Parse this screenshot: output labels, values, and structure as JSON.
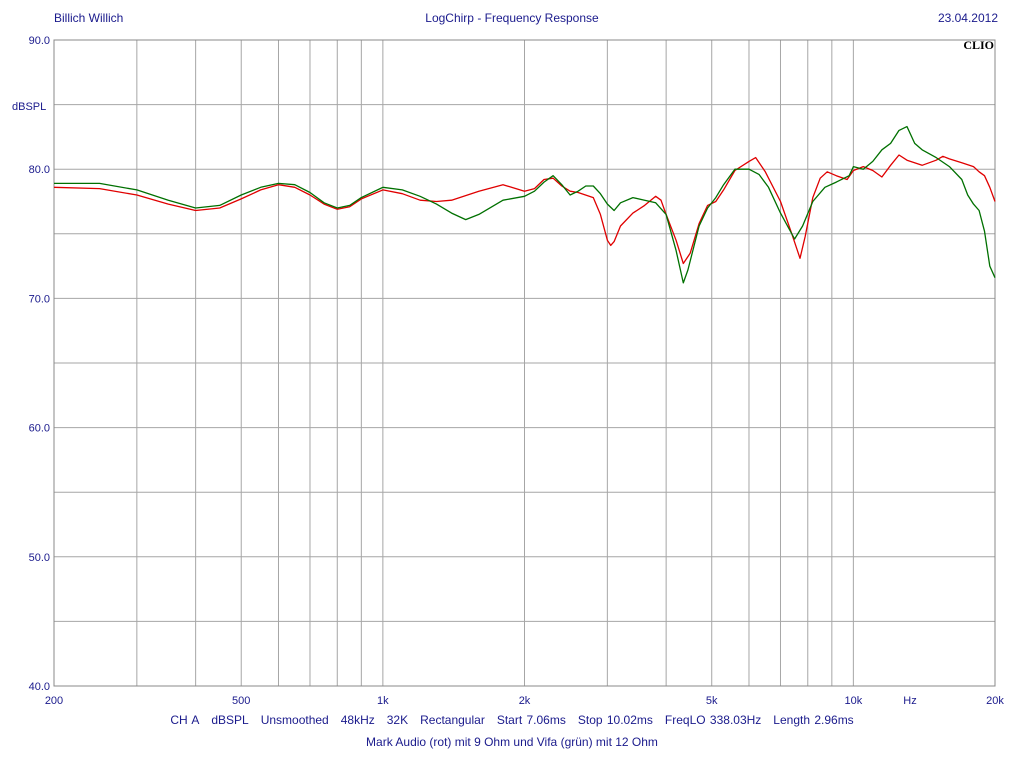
{
  "header": {
    "author": "Billich Willich",
    "title": "LogChirp - Frequency Response",
    "date": "23.04.2012",
    "brand": "CLIO"
  },
  "measurement": {
    "items": [
      "CH A",
      "dBSPL",
      "Unsmoothed",
      "48kHz",
      "32K",
      "Rectangular",
      "Start 7.06ms",
      "Stop 10.02ms",
      "FreqLO 338.03Hz",
      "Length 2.96ms"
    ],
    "caption": "Mark Audio (rot) mit 9 Ohm und Vifa (grün) mit 12 Ohm"
  },
  "chart_data": {
    "type": "line",
    "xscale": "log",
    "xlim": [
      200,
      20000
    ],
    "ylim": [
      40,
      90
    ],
    "ylabel": "dBSPL",
    "xunit": "Hz",
    "grid": true,
    "x_ticks": [
      {
        "value": 200,
        "label": "200"
      },
      {
        "value": 500,
        "label": "500"
      },
      {
        "value": 1000,
        "label": "1k"
      },
      {
        "value": 2000,
        "label": "2k"
      },
      {
        "value": 5000,
        "label": "5k"
      },
      {
        "value": 10000,
        "label": "10k"
      },
      {
        "value": 20000,
        "label": "20k"
      }
    ],
    "y_ticks": [
      {
        "value": 90,
        "label": "90.0"
      },
      {
        "value": 80,
        "label": "80.0"
      },
      {
        "value": 70,
        "label": "70.0"
      },
      {
        "value": 60,
        "label": "60.0"
      },
      {
        "value": 50,
        "label": "50.0"
      },
      {
        "value": 40,
        "label": "40.0"
      }
    ],
    "series": [
      {
        "color": "#e00000",
        "points": [
          [
            200,
            78.6
          ],
          [
            250,
            78.5
          ],
          [
            300,
            78.0
          ],
          [
            350,
            77.3
          ],
          [
            400,
            76.8
          ],
          [
            450,
            77.0
          ],
          [
            500,
            77.7
          ],
          [
            550,
            78.4
          ],
          [
            600,
            78.8
          ],
          [
            650,
            78.6
          ],
          [
            700,
            78.0
          ],
          [
            750,
            77.3
          ],
          [
            800,
            76.9
          ],
          [
            850,
            77.1
          ],
          [
            900,
            77.7
          ],
          [
            1000,
            78.4
          ],
          [
            1100,
            78.1
          ],
          [
            1200,
            77.6
          ],
          [
            1300,
            77.5
          ],
          [
            1400,
            77.6
          ],
          [
            1600,
            78.3
          ],
          [
            1800,
            78.8
          ],
          [
            2000,
            78.3
          ],
          [
            2100,
            78.5
          ],
          [
            2200,
            79.2
          ],
          [
            2300,
            79.3
          ],
          [
            2400,
            78.7
          ],
          [
            2500,
            78.3
          ],
          [
            2600,
            78.2
          ],
          [
            2800,
            77.8
          ],
          [
            2900,
            76.5
          ],
          [
            3000,
            74.5
          ],
          [
            3050,
            74.1
          ],
          [
            3100,
            74.4
          ],
          [
            3200,
            75.6
          ],
          [
            3400,
            76.6
          ],
          [
            3600,
            77.2
          ],
          [
            3800,
            77.9
          ],
          [
            3900,
            77.6
          ],
          [
            4000,
            76.5
          ],
          [
            4200,
            74.5
          ],
          [
            4350,
            72.7
          ],
          [
            4500,
            73.5
          ],
          [
            4700,
            75.8
          ],
          [
            4900,
            77.2
          ],
          [
            5100,
            77.5
          ],
          [
            5300,
            78.4
          ],
          [
            5600,
            79.9
          ],
          [
            6000,
            80.6
          ],
          [
            6200,
            80.9
          ],
          [
            6500,
            79.8
          ],
          [
            7000,
            77.5
          ],
          [
            7400,
            75.0
          ],
          [
            7700,
            73.1
          ],
          [
            7900,
            74.8
          ],
          [
            8200,
            77.8
          ],
          [
            8500,
            79.3
          ],
          [
            8800,
            79.8
          ],
          [
            9200,
            79.5
          ],
          [
            9700,
            79.2
          ],
          [
            10000,
            79.9
          ],
          [
            10500,
            80.2
          ],
          [
            11000,
            79.9
          ],
          [
            11500,
            79.4
          ],
          [
            12000,
            80.3
          ],
          [
            12500,
            81.1
          ],
          [
            13000,
            80.7
          ],
          [
            14000,
            80.3
          ],
          [
            15000,
            80.7
          ],
          [
            15500,
            81.0
          ],
          [
            16000,
            80.8
          ],
          [
            17000,
            80.5
          ],
          [
            18000,
            80.2
          ],
          [
            18500,
            79.8
          ],
          [
            19000,
            79.5
          ],
          [
            19500,
            78.6
          ],
          [
            20000,
            77.5
          ]
        ]
      },
      {
        "color": "#007000",
        "points": [
          [
            200,
            78.9
          ],
          [
            250,
            78.9
          ],
          [
            300,
            78.4
          ],
          [
            350,
            77.6
          ],
          [
            400,
            77.0
          ],
          [
            450,
            77.2
          ],
          [
            500,
            78.0
          ],
          [
            550,
            78.6
          ],
          [
            600,
            78.9
          ],
          [
            650,
            78.8
          ],
          [
            700,
            78.2
          ],
          [
            750,
            77.4
          ],
          [
            800,
            77.0
          ],
          [
            850,
            77.2
          ],
          [
            900,
            77.8
          ],
          [
            1000,
            78.6
          ],
          [
            1100,
            78.4
          ],
          [
            1200,
            77.9
          ],
          [
            1300,
            77.3
          ],
          [
            1400,
            76.6
          ],
          [
            1500,
            76.1
          ],
          [
            1600,
            76.5
          ],
          [
            1800,
            77.6
          ],
          [
            2000,
            77.9
          ],
          [
            2100,
            78.3
          ],
          [
            2200,
            79.0
          ],
          [
            2300,
            79.5
          ],
          [
            2400,
            78.8
          ],
          [
            2500,
            78.0
          ],
          [
            2600,
            78.3
          ],
          [
            2700,
            78.7
          ],
          [
            2800,
            78.7
          ],
          [
            2900,
            78.1
          ],
          [
            3000,
            77.3
          ],
          [
            3100,
            76.8
          ],
          [
            3200,
            77.4
          ],
          [
            3400,
            77.8
          ],
          [
            3600,
            77.6
          ],
          [
            3800,
            77.4
          ],
          [
            4000,
            76.5
          ],
          [
            4200,
            73.7
          ],
          [
            4350,
            71.2
          ],
          [
            4450,
            72.2
          ],
          [
            4700,
            75.6
          ],
          [
            4900,
            77.0
          ],
          [
            5100,
            77.8
          ],
          [
            5300,
            78.8
          ],
          [
            5600,
            80.0
          ],
          [
            6000,
            80.0
          ],
          [
            6300,
            79.6
          ],
          [
            6600,
            78.6
          ],
          [
            7000,
            76.6
          ],
          [
            7500,
            74.6
          ],
          [
            7800,
            75.6
          ],
          [
            8200,
            77.5
          ],
          [
            8700,
            78.6
          ],
          [
            9200,
            79.0
          ],
          [
            9800,
            79.5
          ],
          [
            10000,
            80.2
          ],
          [
            10500,
            80.0
          ],
          [
            11000,
            80.6
          ],
          [
            11500,
            81.5
          ],
          [
            12000,
            82.0
          ],
          [
            12500,
            83.0
          ],
          [
            13000,
            83.3
          ],
          [
            13500,
            82.0
          ],
          [
            14000,
            81.5
          ],
          [
            15000,
            80.9
          ],
          [
            16000,
            80.2
          ],
          [
            17000,
            79.2
          ],
          [
            17500,
            78.0
          ],
          [
            18000,
            77.3
          ],
          [
            18500,
            76.8
          ],
          [
            19000,
            75.2
          ],
          [
            19500,
            72.5
          ],
          [
            20000,
            71.6
          ]
        ]
      }
    ]
  }
}
